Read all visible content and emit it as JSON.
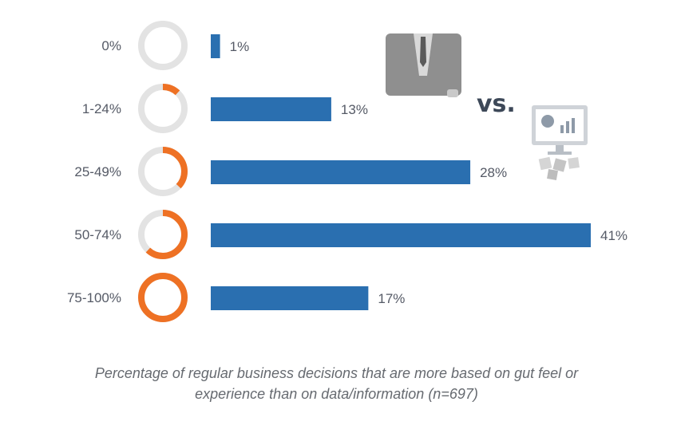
{
  "chart_data": {
    "type": "bar",
    "orientation": "horizontal",
    "categories": [
      "0%",
      "1-24%",
      "25-49%",
      "50-74%",
      "75-100%"
    ],
    "values": [
      1,
      13,
      28,
      41,
      17
    ],
    "value_labels": [
      "1%",
      "13%",
      "28%",
      "41%",
      "17%"
    ],
    "ring_fill_fractions": [
      0,
      0.12,
      0.37,
      0.62,
      1.0
    ],
    "xlim": [
      0,
      41
    ],
    "grid": false,
    "colors": {
      "bar": "#2a6fb0",
      "ring_fill": "#ee7124",
      "ring_track": "#e3e3e3",
      "label_text": "#555a66"
    }
  },
  "illustration": {
    "vs_text": "vs.",
    "icons": [
      "businessman-icon",
      "computer-data-icon"
    ]
  },
  "caption": {
    "line1": "Percentage of regular business decisions that are more based on gut feel or",
    "line2": "experience than on data/information (n=697)"
  }
}
